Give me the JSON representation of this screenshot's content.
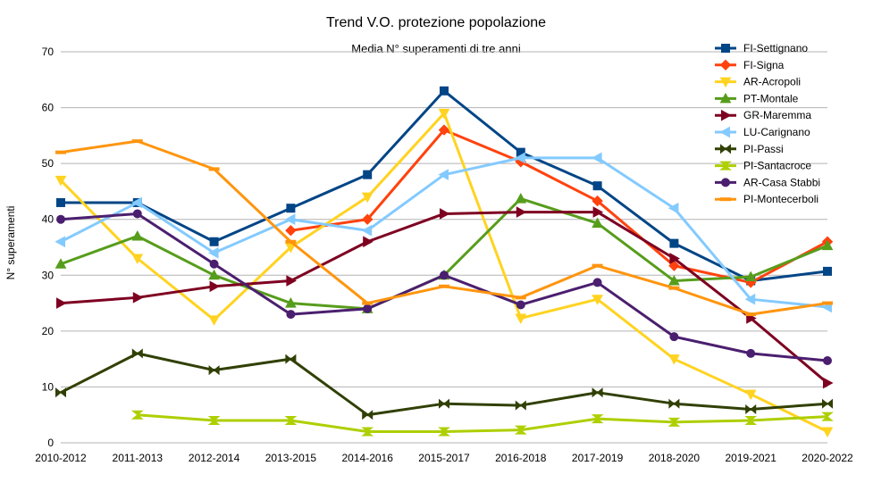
{
  "chart_data": {
    "type": "line",
    "title": "Trend V.O. protezione popolazione",
    "subtitle": "Media N° superamenti di tre anni",
    "xlabel": "",
    "ylabel": "N° superamenti",
    "ylim": [
      0,
      70
    ],
    "yticks": [
      0,
      10,
      20,
      30,
      40,
      50,
      60,
      70
    ],
    "grid": true,
    "legend_position": "right",
    "categories": [
      "2010-2012",
      "2011-2013",
      "2012-2014",
      "2013-2015",
      "2014-2016",
      "2015-2017",
      "2016-2018",
      "2017-2019",
      "2018-2020",
      "2019-2021",
      "2020-2022"
    ],
    "series": [
      {
        "name": "FI-Settignano",
        "color": "#004586",
        "marker": "square",
        "values": [
          43,
          43,
          36,
          42,
          48,
          63,
          52,
          46,
          35.7,
          29,
          30.7
        ]
      },
      {
        "name": "FI-Signa",
        "color": "#ff420e",
        "marker": "diamond",
        "values": [
          null,
          null,
          null,
          38,
          40,
          56,
          50.3,
          43.3,
          31.7,
          28.7,
          36
        ]
      },
      {
        "name": "AR-Acropoli",
        "color": "#ffd320",
        "marker": "triangle-down",
        "values": [
          47,
          33,
          22,
          35,
          44,
          59,
          22.3,
          25.7,
          15,
          8.7,
          2
        ]
      },
      {
        "name": "PT-Montale",
        "color": "#579d1c",
        "marker": "triangle-up",
        "values": [
          32,
          37,
          30,
          25,
          24,
          30,
          43.7,
          39.3,
          29,
          29.7,
          35.3
        ]
      },
      {
        "name": "GR-Maremma",
        "color": "#7e0021",
        "marker": "triangle-right",
        "values": [
          25,
          26,
          28,
          29,
          36,
          41,
          41.3,
          41.3,
          33,
          22.3,
          10.7
        ]
      },
      {
        "name": "LU-Carignano",
        "color": "#83caff",
        "marker": "triangle-left",
        "values": [
          36,
          43,
          34,
          40,
          38,
          48,
          51,
          51,
          42,
          25.7,
          24.3
        ]
      },
      {
        "name": "PI-Passi",
        "color": "#314004",
        "marker": "bowtie",
        "values": [
          9,
          16,
          13,
          15,
          5,
          7,
          6.7,
          9,
          7,
          6,
          7
        ]
      },
      {
        "name": "PI-Santacroce",
        "color": "#aecf00",
        "marker": "hourglass",
        "values": [
          null,
          5,
          4,
          4,
          2,
          2,
          2.3,
          4.3,
          3.7,
          4,
          4.7
        ]
      },
      {
        "name": "AR-Casa Stabbi",
        "color": "#4b1f6f",
        "marker": "circle",
        "values": [
          40,
          41,
          32,
          23,
          24,
          30,
          24.7,
          28.7,
          19,
          16,
          14.7
        ]
      },
      {
        "name": "PI-Montecerboli",
        "color": "#ff950e",
        "marker": "dash",
        "values": [
          52,
          54,
          49,
          36,
          25,
          28,
          26,
          31.7,
          27.7,
          23,
          25
        ]
      }
    ]
  }
}
